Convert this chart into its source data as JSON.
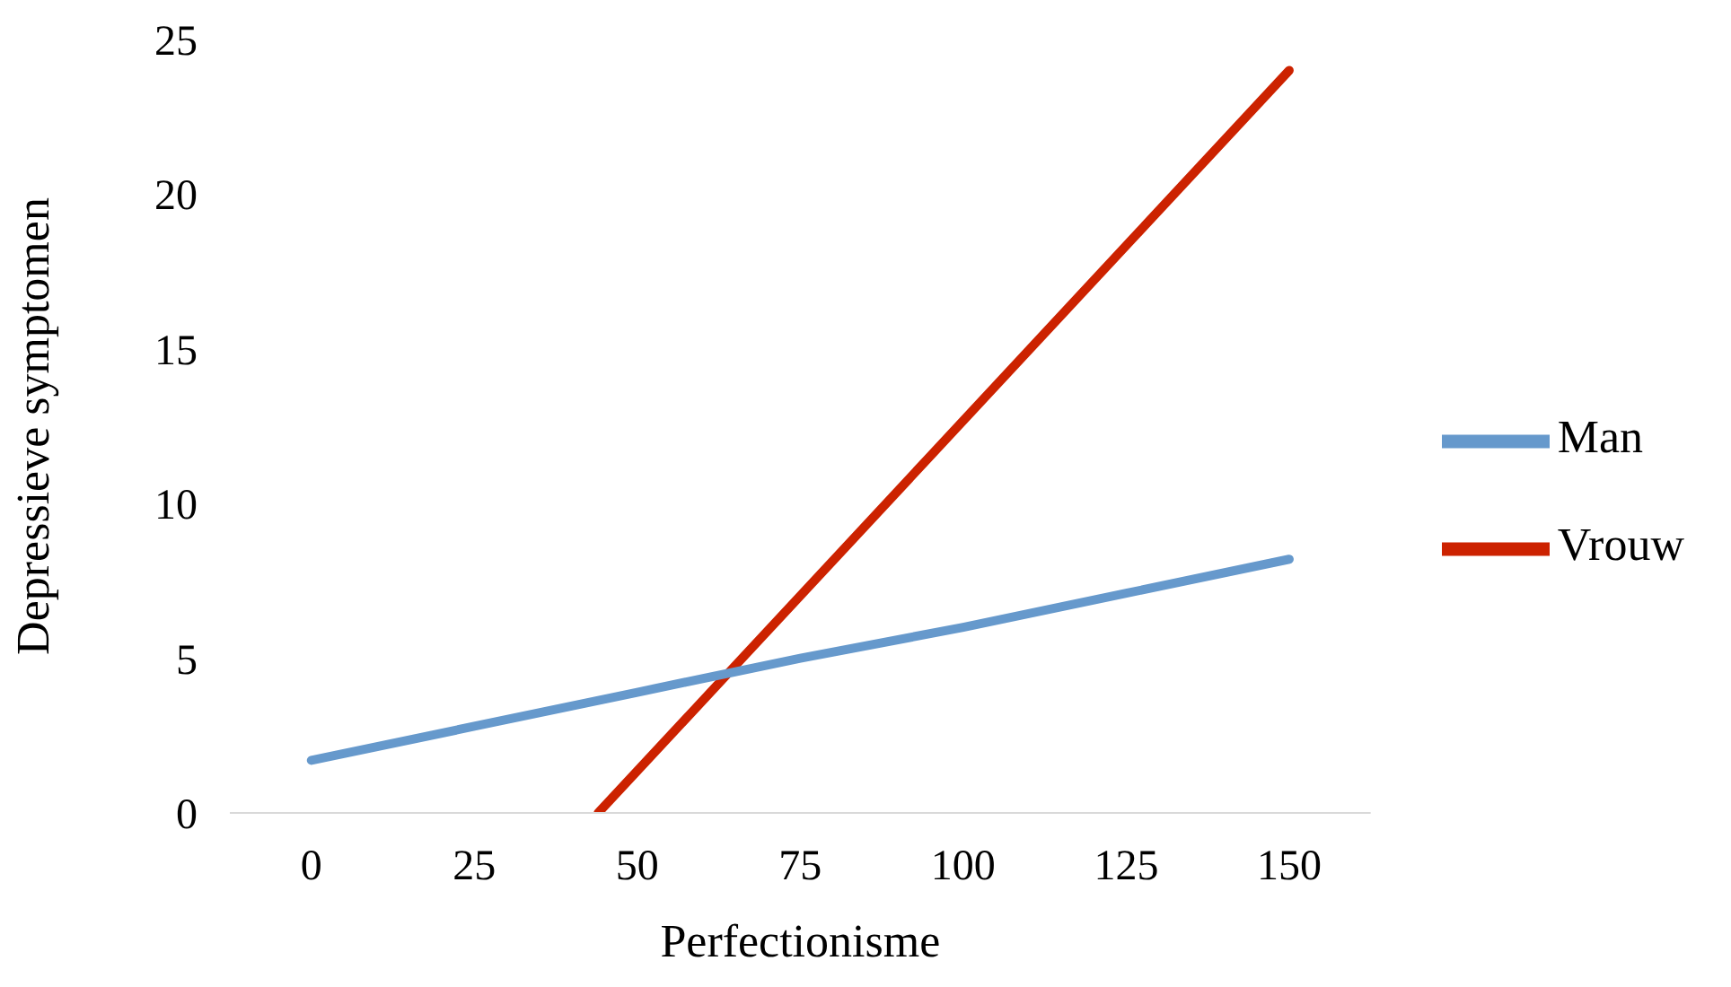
{
  "chart_data": {
    "type": "line",
    "xlabel": "Perfectionisme",
    "ylabel": "Depressieve symptomen",
    "xlim": [
      -12.5,
      162.5
    ],
    "xticks": [
      0,
      25,
      50,
      75,
      100,
      125,
      150
    ],
    "ylim": [
      0,
      25
    ],
    "yticks": [
      0,
      5,
      10,
      15,
      20,
      25
    ],
    "grid": false,
    "legend": "right",
    "marker": "none",
    "line_style": "solid",
    "series": [
      {
        "name": "Vrouw",
        "color": "#cc2200",
        "x": [
          44,
          150
        ],
        "values": [
          0,
          24
        ]
      },
      {
        "name": "Man",
        "color": "#6699cc",
        "x": [
          0,
          25,
          50,
          75,
          100,
          125,
          150
        ],
        "values": [
          1.7,
          2.8,
          3.9,
          5.0,
          6.0,
          7.1,
          8.2
        ]
      }
    ]
  }
}
